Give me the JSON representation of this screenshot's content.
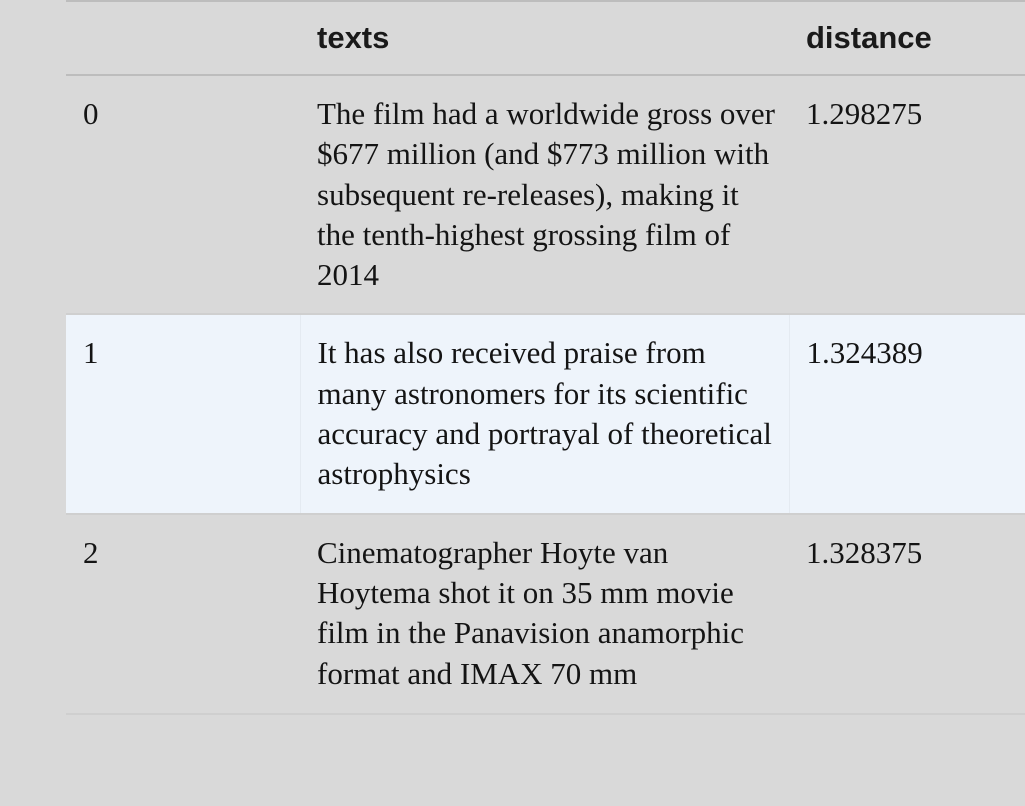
{
  "table": {
    "columns": [
      "",
      "texts",
      "distance"
    ],
    "rows": [
      {
        "index": "0",
        "text": "The film had a worldwide gross over $677 million (and $773 million with subsequent re-releases), making it the tenth-highest grossing film of 2014",
        "distance": "1.298275"
      },
      {
        "index": "1",
        "text": "It has also received praise from many astronomers for its scientific accuracy and portrayal of theoretical astrophysics",
        "distance": "1.324389"
      },
      {
        "index": "2",
        "text": "Cinematographer Hoyte van Hoytema shot it on 35 mm movie film in the Panavision anamorphic format and IMAX 70 mm",
        "distance": "1.328375"
      }
    ]
  },
  "colors": {
    "background": "#d9d9d9",
    "highlight_row": "#eef4fb",
    "text": "#141414"
  }
}
